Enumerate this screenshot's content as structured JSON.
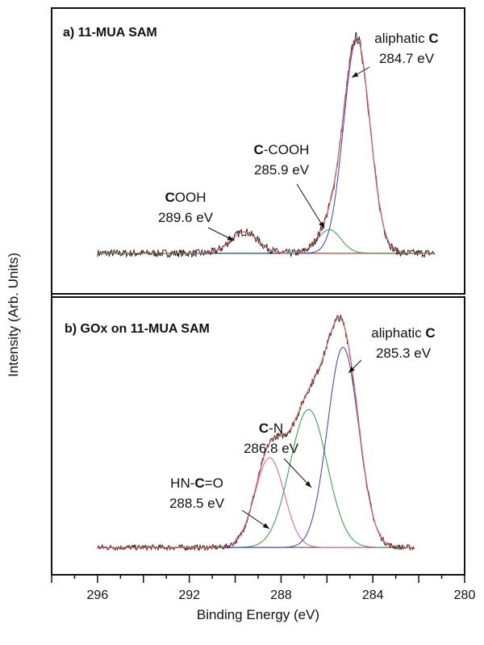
{
  "figure": {
    "ylabel": "Intensity (Arb. Units)",
    "xlabel": "Binding Energy (eV)"
  },
  "chart_data": {
    "type": "line",
    "xlim": [
      298,
      280
    ],
    "x_direction": "reversed",
    "xticks": [
      296,
      292,
      288,
      284,
      280
    ],
    "xlabel": "Binding Energy (eV)",
    "ylabel": "Intensity (Arb. Units)",
    "grid": false,
    "panels": [
      {
        "id": "a",
        "title": "a) 11-MUA SAM",
        "data_range": [
          296,
          281.3
        ],
        "baseline": 0.02,
        "noise": 0.018,
        "fit_peaks": [
          {
            "center": 289.6,
            "height": 0.1,
            "fwhm": 1.4,
            "color": "#d04040"
          },
          {
            "center": 285.9,
            "height": 0.11,
            "fwhm": 1.2,
            "color": "#2e9e3e"
          },
          {
            "center": 284.7,
            "height": 1.0,
            "fwhm": 1.35,
            "color": "#3b3bd1"
          }
        ],
        "envelope_color": "#e35b5b",
        "annotations": [
          {
            "lines": [
              [
                "",
                "aliphatic "
              ],
              [
                "b",
                "C"
              ]
            ],
            "value": "284.7 eV",
            "peak": 284.7
          },
          {
            "lines": [
              [
                "b",
                "C"
              ],
              [
                "",
                "-COOH"
              ]
            ],
            "value": "285.9 eV",
            "peak": 285.9
          },
          {
            "lines": [
              [
                "b",
                "C"
              ],
              [
                "",
                "OOH"
              ]
            ],
            "value": "289.6 eV",
            "peak": 289.6
          }
        ]
      },
      {
        "id": "b",
        "title": "b) GOx on 11-MUA SAM",
        "data_range": [
          296,
          282.2
        ],
        "baseline": 0.01,
        "noise": 0.012,
        "fit_peaks": [
          {
            "center": 288.5,
            "height": 0.39,
            "fwhm": 1.5,
            "color": "#e05a8a"
          },
          {
            "center": 286.8,
            "height": 0.6,
            "fwhm": 1.9,
            "color": "#2e9e3e"
          },
          {
            "center": 285.3,
            "height": 0.87,
            "fwhm": 1.6,
            "color": "#3b3bd1"
          }
        ],
        "envelope_color": "#e35b5b",
        "annotations": [
          {
            "lines": [
              [
                "",
                "aliphatic "
              ],
              [
                "b",
                "C"
              ]
            ],
            "value": "285.3 eV",
            "peak": 285.3
          },
          {
            "lines": [
              [
                "b",
                "C"
              ],
              [
                "",
                "-N"
              ]
            ],
            "value": "286.8 eV",
            "peak": 286.8
          },
          {
            "lines": [
              [
                "",
                "HN-"
              ],
              [
                "b",
                "C"
              ],
              [
                "",
                "=O"
              ]
            ],
            "value": "288.5 eV",
            "peak": 288.5
          }
        ]
      }
    ]
  }
}
